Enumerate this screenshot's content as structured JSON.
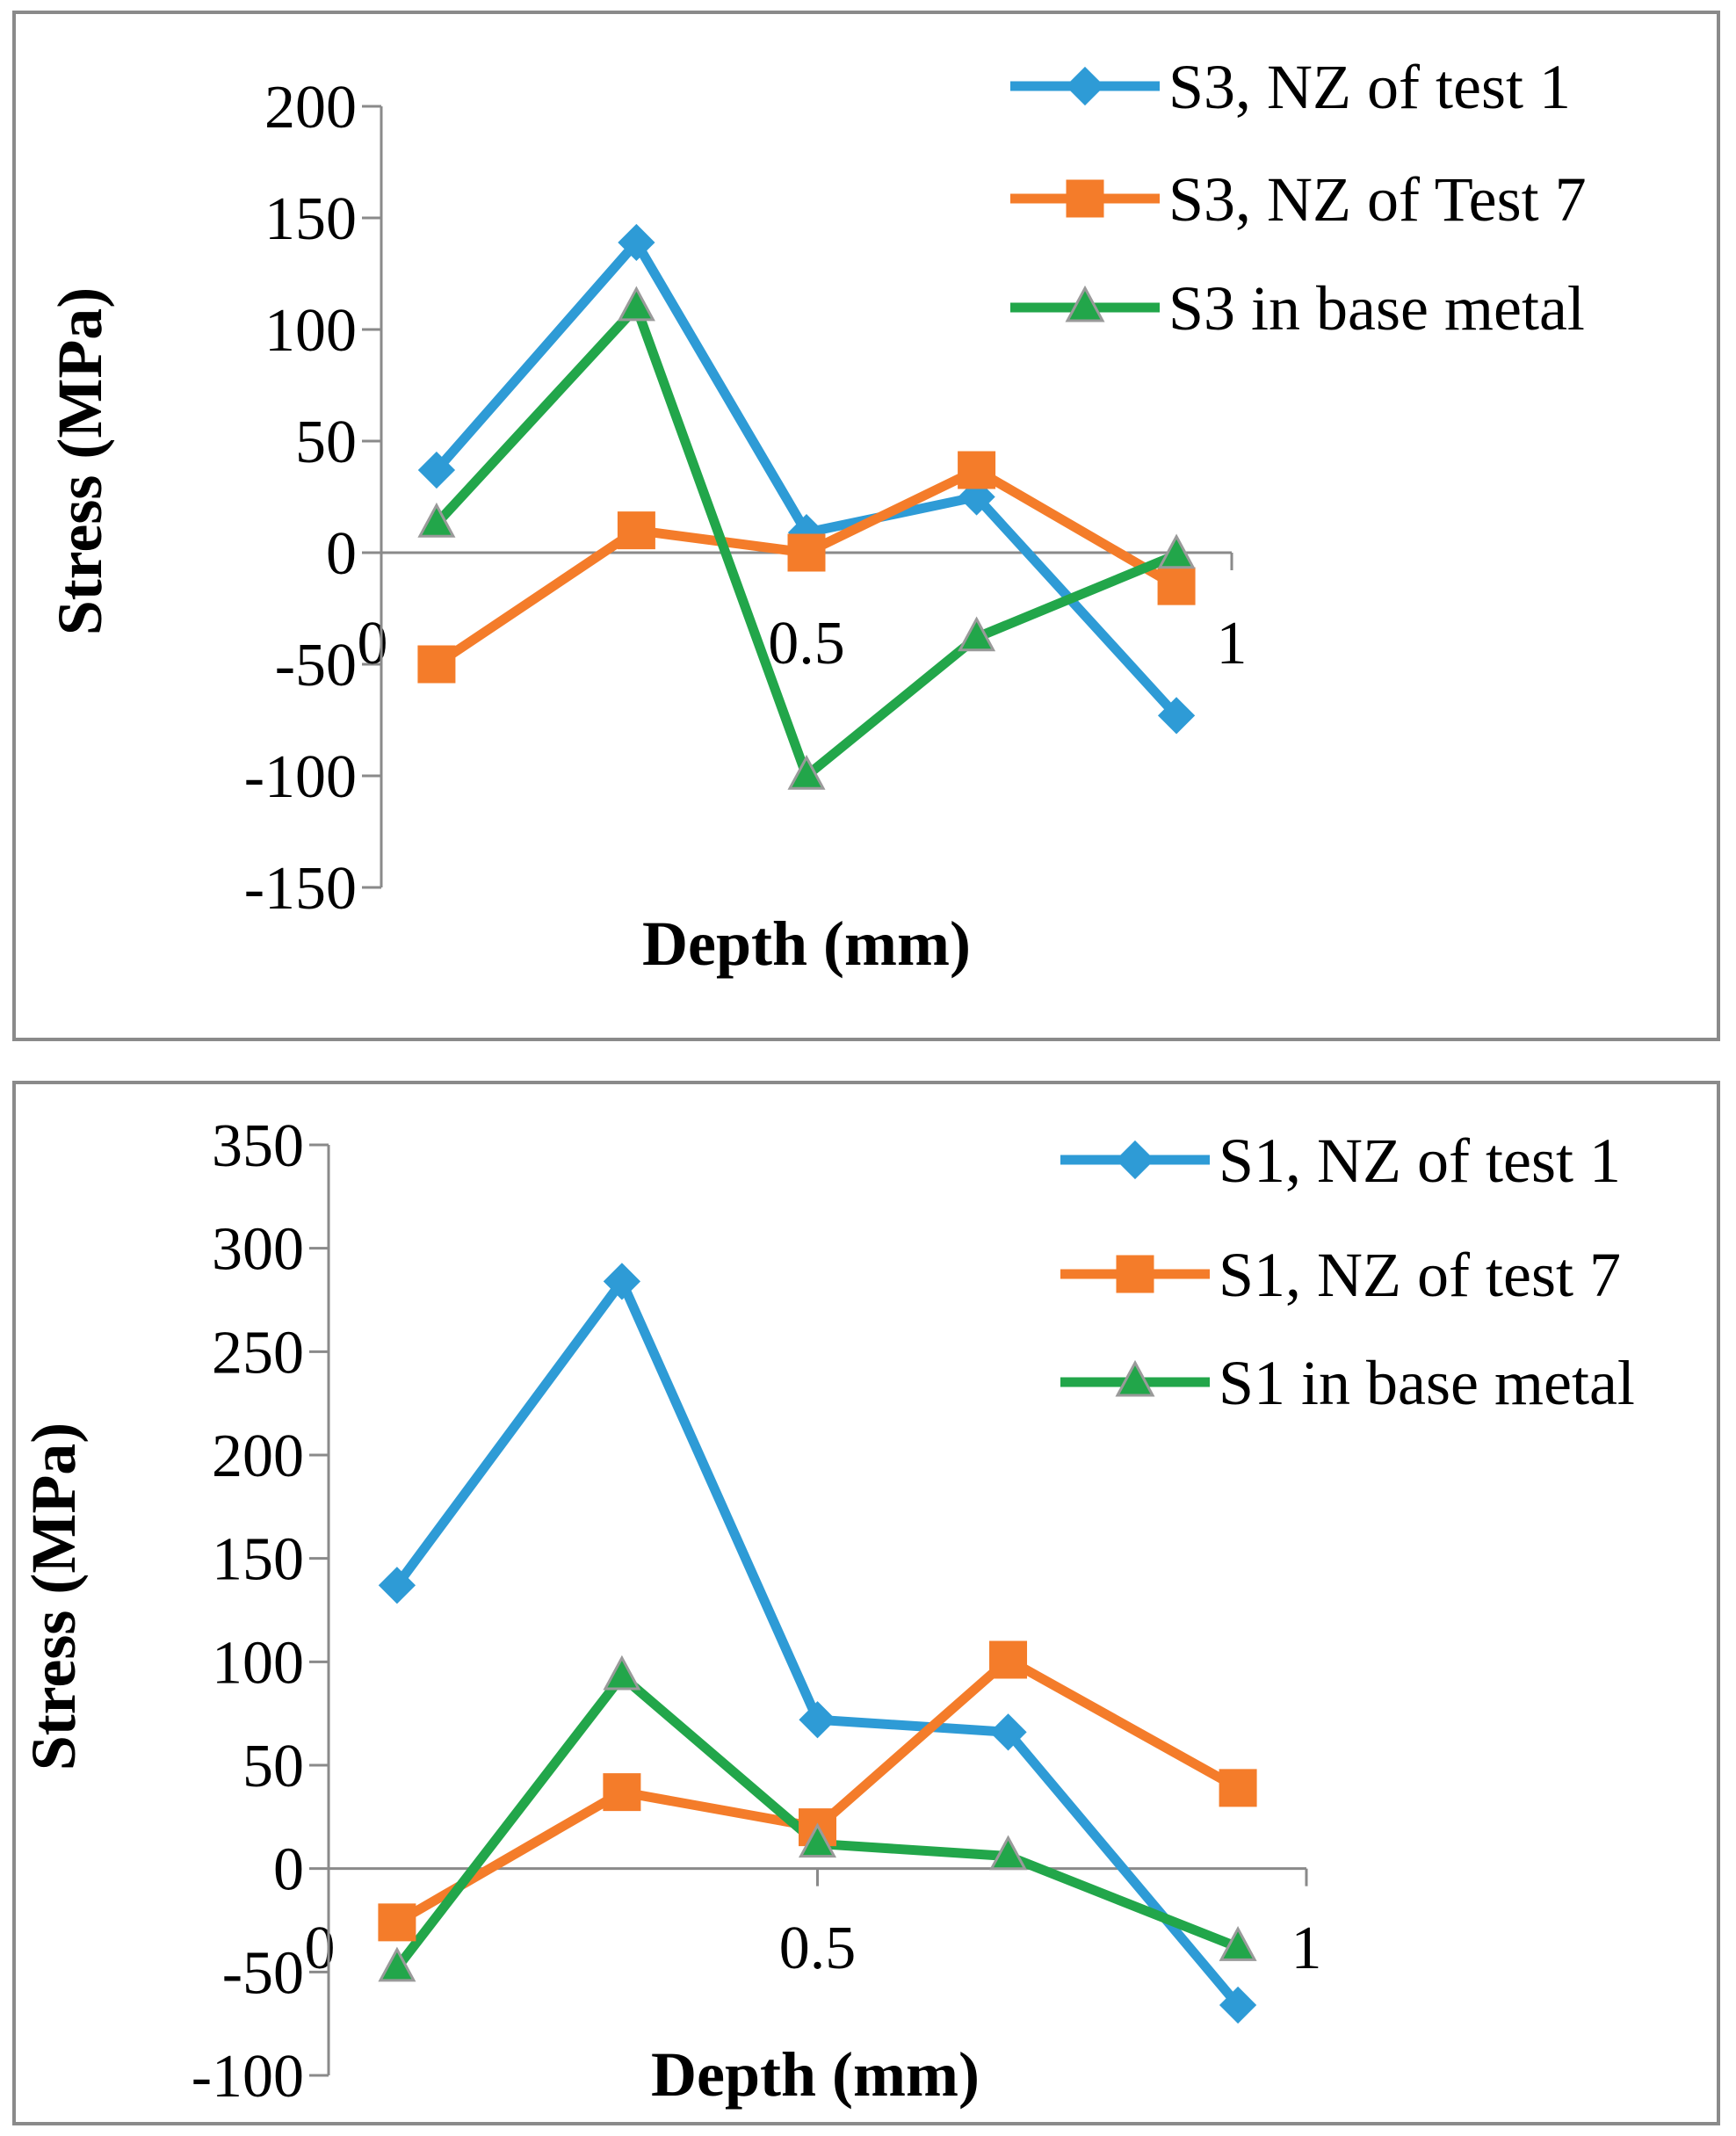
{
  "chart_data": [
    {
      "type": "line",
      "xlabel": "Depth (mm)",
      "ylabel": "Stress (MPa)",
      "xlim": [
        0,
        1
      ],
      "ylim": [
        -150,
        200
      ],
      "x_ticks": [
        "0",
        "0.5",
        "1"
      ],
      "y_ticks": [
        "200",
        "150",
        "100",
        "50",
        "0",
        "-50",
        "-100",
        "-150"
      ],
      "legend_position": "top-right",
      "series": [
        {
          "name": "S3, NZ of test 1",
          "color": "#2e9bd6",
          "marker": "diamond",
          "x": [
            0.065,
            0.3,
            0.5,
            0.7,
            0.935
          ],
          "y": [
            37,
            139,
            9,
            25,
            -73
          ]
        },
        {
          "name": "S3, NZ of Test 7",
          "color": "#f47c2a",
          "marker": "square",
          "x": [
            0.065,
            0.3,
            0.5,
            0.7,
            0.935
          ],
          "y": [
            -50,
            10,
            0,
            37,
            -15
          ]
        },
        {
          "name": "S3 in base metal",
          "color": "#22a64a",
          "marker": "triangle",
          "x": [
            0.065,
            0.3,
            0.5,
            0.7,
            0.935
          ],
          "y": [
            13,
            110,
            -100,
            -38,
            -1
          ]
        }
      ]
    },
    {
      "type": "line",
      "xlabel": "Depth (mm)",
      "ylabel": "Stress (MPa)",
      "xlim": [
        0,
        1
      ],
      "ylim": [
        -100,
        350
      ],
      "x_ticks": [
        "0",
        "0.5",
        "1"
      ],
      "y_ticks": [
        "350",
        "300",
        "250",
        "200",
        "150",
        "100",
        "50",
        "0",
        "-50",
        "-100"
      ],
      "legend_position": "top-right",
      "series": [
        {
          "name": "S1, NZ of test 1",
          "color": "#2e9bd6",
          "marker": "diamond",
          "x": [
            0.07,
            0.3,
            0.5,
            0.695,
            0.93
          ],
          "y": [
            137,
            284,
            72,
            66,
            -66
          ]
        },
        {
          "name": "S1, NZ of test 7",
          "color": "#f47c2a",
          "marker": "square",
          "x": [
            0.07,
            0.3,
            0.5,
            0.695,
            0.93
          ],
          "y": [
            -26,
            37,
            20,
            101,
            39
          ]
        },
        {
          "name": "S1 in base metal",
          "color": "#22a64a",
          "marker": "triangle",
          "x": [
            0.07,
            0.3,
            0.5,
            0.695,
            0.93
          ],
          "y": [
            -48,
            93,
            12,
            6,
            -38
          ]
        }
      ]
    }
  ]
}
